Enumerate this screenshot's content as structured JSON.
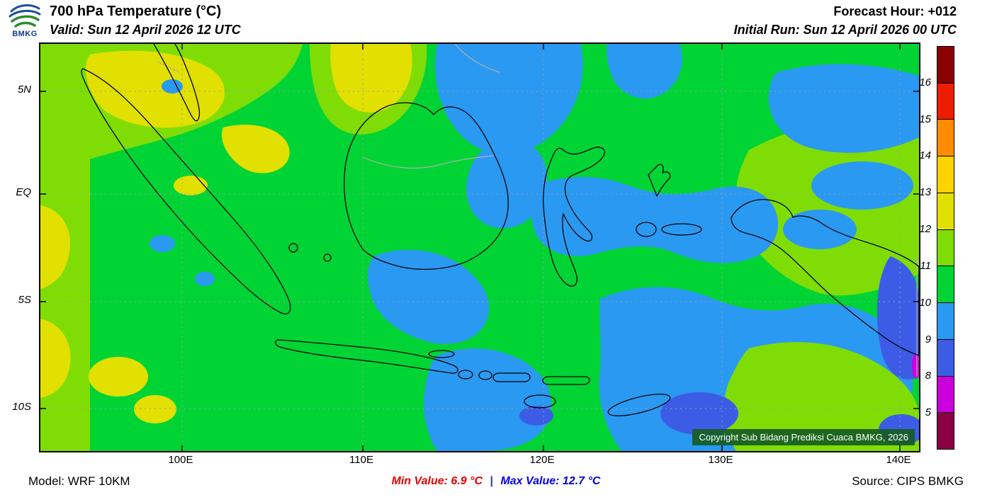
{
  "header": {
    "logo_text": "BMKG",
    "title": "700 hPa Temperature (°C)",
    "valid": "Valid: Sun 12 April 2026 12 UTC",
    "forecast_hour": "Forecast Hour: +012",
    "initial_run": "Initial Run: Sun 12 April 2026 00 UTC"
  },
  "map": {
    "lat_labels": [
      "5N",
      "EQ",
      "5S",
      "10S"
    ],
    "lon_labels": [
      "100E",
      "110E",
      "120E",
      "130E",
      "140E"
    ],
    "copyright": "Copyright Sub Bidang Prediksi Cuaca BMKG, 2026"
  },
  "legend": {
    "unit": "°C",
    "tick_labels": [
      "16",
      "15",
      "14",
      "13",
      "12",
      "11",
      "10",
      "9",
      "8",
      "5"
    ],
    "colors_top_to_bottom": [
      "#8b0000",
      "#ee1c00",
      "#ff8c00",
      "#ffd300",
      "#e2e000",
      "#7fdd05",
      "#00d435",
      "#2a99f2",
      "#3d5ce6",
      "#cc00dd",
      "#8b0045"
    ]
  },
  "footer": {
    "model": "Model: WRF 10KM",
    "min_value": "Min Value: 6.9 °C",
    "separator": "|",
    "max_value": "Max Value: 12.7 °C",
    "source": "Source: CIPS BMKG"
  },
  "chart_data": {
    "type": "heatmap",
    "title": "700 hPa Temperature (°C)",
    "variable": "700 hPa Temperature",
    "unit": "°C",
    "scale_breaks": [
      5,
      8,
      9,
      10,
      11,
      12,
      13,
      14,
      15,
      16
    ],
    "min_value": 6.9,
    "max_value": 12.7,
    "x_ticks": [
      "100E",
      "110E",
      "120E",
      "130E",
      "140E"
    ],
    "y_ticks": [
      "5N",
      "EQ",
      "5S",
      "10S"
    ],
    "legend_position": "right",
    "dominant_values_note": "Mostly 10-12 °C (greens) with 9-10 °C (blue) pools over central/eastern seas and 12-13 °C (yellow) patches west of Sumatra"
  }
}
